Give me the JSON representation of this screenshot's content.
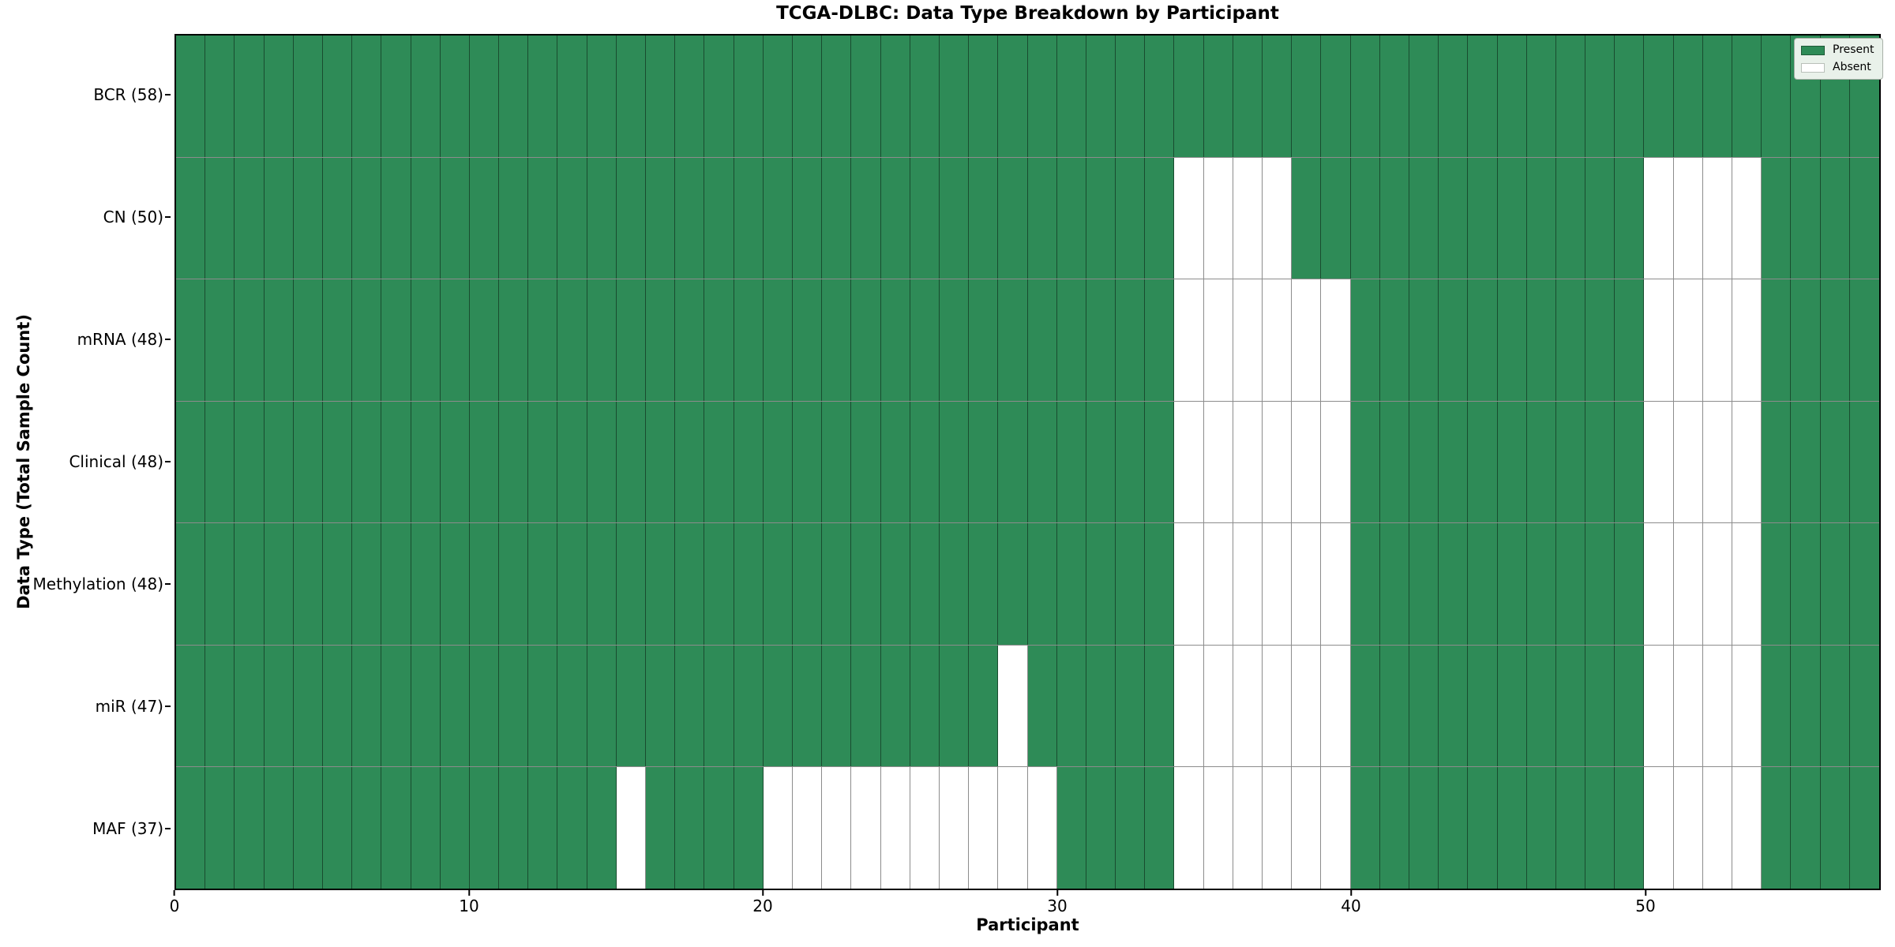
{
  "title": "TCGA-DLBC: Data Type Breakdown by Participant",
  "x_axis_label": "Participant",
  "y_axis_label": "Data Type (Total Sample Count)",
  "x_tick_labels": [
    "0",
    "10",
    "20",
    "30",
    "40",
    "50"
  ],
  "legend": {
    "present_label": "Present",
    "absent_label": "Absent"
  },
  "colors": {
    "present": "#2E8B57",
    "absent": "#FFFFFF",
    "cell_edge": "rgba(0,0,0,0.45)"
  },
  "chart_data": {
    "type": "heatmap",
    "title": "TCGA-DLBC: Data Type Breakdown by Participant",
    "xlabel": "Participant",
    "ylabel": "Data Type (Total Sample Count)",
    "xlim": [
      0,
      58
    ],
    "x_ticks": [
      0,
      10,
      20,
      30,
      40,
      50
    ],
    "grid": true,
    "legend_position": "upper right",
    "legend_entries": [
      "Present",
      "Absent"
    ],
    "n_participants": 58,
    "value_encoding": {
      "present": 1,
      "absent": 0
    },
    "rows": [
      {
        "label": "BCR (58)",
        "data_type": "BCR",
        "total_samples": 58,
        "absent_participants": []
      },
      {
        "label": "CN (50)",
        "data_type": "CN",
        "total_samples": 50,
        "absent_participants": [
          34,
          35,
          36,
          37,
          50,
          51,
          52,
          53
        ]
      },
      {
        "label": "mRNA (48)",
        "data_type": "mRNA",
        "total_samples": 48,
        "absent_participants": [
          34,
          35,
          36,
          37,
          38,
          39,
          50,
          51,
          52,
          53
        ]
      },
      {
        "label": "Clinical (48)",
        "data_type": "Clinical",
        "total_samples": 48,
        "absent_participants": [
          34,
          35,
          36,
          37,
          38,
          39,
          50,
          51,
          52,
          53
        ]
      },
      {
        "label": "Methylation (48)",
        "data_type": "Methylation",
        "total_samples": 48,
        "absent_participants": [
          34,
          35,
          36,
          37,
          38,
          39,
          50,
          51,
          52,
          53
        ]
      },
      {
        "label": "miR (47)",
        "data_type": "miR",
        "total_samples": 47,
        "absent_participants": [
          28,
          34,
          35,
          36,
          37,
          38,
          39,
          50,
          51,
          52,
          53
        ]
      },
      {
        "label": "MAF (37)",
        "data_type": "MAF",
        "total_samples": 37,
        "absent_participants": [
          15,
          20,
          21,
          22,
          23,
          24,
          25,
          26,
          27,
          28,
          29,
          34,
          35,
          36,
          37,
          38,
          39,
          50,
          51,
          52,
          53
        ]
      }
    ]
  }
}
